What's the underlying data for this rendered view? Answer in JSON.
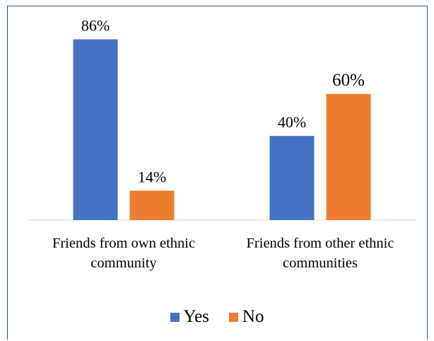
{
  "chart_data": {
    "type": "bar",
    "categories": [
      [
        "Friends from own ethnic",
        "community"
      ],
      [
        "Friends from other ethnic",
        "communities"
      ]
    ],
    "series": [
      {
        "name": "Yes",
        "values": [
          86,
          40
        ],
        "labels": [
          "86%",
          "40%"
        ],
        "color": "#4472c4"
      },
      {
        "name": "No",
        "values": [
          14,
          60
        ],
        "labels": [
          "14%",
          "60%"
        ],
        "color": "#ed7d31"
      }
    ],
    "title": "",
    "xlabel": "",
    "ylabel": "",
    "ylim": [
      0,
      100
    ],
    "grid": false,
    "legend_position": "bottom"
  }
}
